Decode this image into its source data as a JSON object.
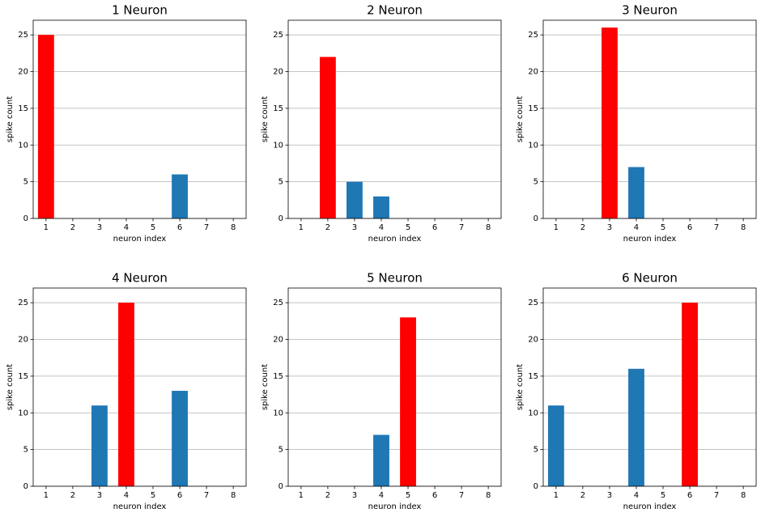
{
  "chart_data": [
    {
      "type": "bar",
      "title": "1 Neuron",
      "xlabel": "neuron index",
      "ylabel": "spike count",
      "x": [
        1,
        2,
        3,
        4,
        5,
        6,
        7,
        8
      ],
      "values": [
        25,
        0,
        0,
        0,
        0,
        6,
        0,
        0
      ],
      "colors": [
        "#ff0000",
        "#1f77b4",
        "#1f77b4",
        "#1f77b4",
        "#1f77b4",
        "#1f77b4",
        "#1f77b4",
        "#1f77b4"
      ],
      "xlim": [
        0.52,
        8.48
      ],
      "ylim": [
        0,
        27
      ],
      "xticks": [
        1,
        2,
        3,
        4,
        5,
        6,
        7,
        8
      ],
      "yticks": [
        0,
        5,
        10,
        15,
        20,
        25
      ],
      "grid": "y"
    },
    {
      "type": "bar",
      "title": "2 Neuron",
      "xlabel": "neuron index",
      "ylabel": "spike count",
      "x": [
        1,
        2,
        3,
        4,
        5,
        6,
        7,
        8
      ],
      "values": [
        0,
        22,
        5,
        3,
        0,
        0,
        0,
        0
      ],
      "colors": [
        "#1f77b4",
        "#ff0000",
        "#1f77b4",
        "#1f77b4",
        "#1f77b4",
        "#1f77b4",
        "#1f77b4",
        "#1f77b4"
      ],
      "xlim": [
        0.52,
        8.48
      ],
      "ylim": [
        0,
        27
      ],
      "xticks": [
        1,
        2,
        3,
        4,
        5,
        6,
        7,
        8
      ],
      "yticks": [
        0,
        5,
        10,
        15,
        20,
        25
      ],
      "grid": "y"
    },
    {
      "type": "bar",
      "title": "3 Neuron",
      "xlabel": "neuron index",
      "ylabel": "spike count",
      "x": [
        1,
        2,
        3,
        4,
        5,
        6,
        7,
        8
      ],
      "values": [
        0,
        0,
        26,
        7,
        0,
        0,
        0,
        0
      ],
      "colors": [
        "#1f77b4",
        "#1f77b4",
        "#ff0000",
        "#1f77b4",
        "#1f77b4",
        "#1f77b4",
        "#1f77b4",
        "#1f77b4"
      ],
      "xlim": [
        0.52,
        8.48
      ],
      "ylim": [
        0,
        27
      ],
      "xticks": [
        1,
        2,
        3,
        4,
        5,
        6,
        7,
        8
      ],
      "yticks": [
        0,
        5,
        10,
        15,
        20,
        25
      ],
      "grid": "y"
    },
    {
      "type": "bar",
      "title": "4 Neuron",
      "xlabel": "neuron index",
      "ylabel": "spike count",
      "x": [
        1,
        2,
        3,
        4,
        5,
        6,
        7,
        8
      ],
      "values": [
        0,
        0,
        11,
        25,
        0,
        13,
        0,
        0
      ],
      "colors": [
        "#1f77b4",
        "#1f77b4",
        "#1f77b4",
        "#ff0000",
        "#1f77b4",
        "#1f77b4",
        "#1f77b4",
        "#1f77b4"
      ],
      "xlim": [
        0.52,
        8.48
      ],
      "ylim": [
        0,
        27
      ],
      "xticks": [
        1,
        2,
        3,
        4,
        5,
        6,
        7,
        8
      ],
      "yticks": [
        0,
        5,
        10,
        15,
        20,
        25
      ],
      "grid": "y"
    },
    {
      "type": "bar",
      "title": "5 Neuron",
      "xlabel": "neuron index",
      "ylabel": "spike count",
      "x": [
        1,
        2,
        3,
        4,
        5,
        6,
        7,
        8
      ],
      "values": [
        0,
        0,
        0,
        7,
        23,
        0,
        0,
        0
      ],
      "colors": [
        "#1f77b4",
        "#1f77b4",
        "#1f77b4",
        "#1f77b4",
        "#ff0000",
        "#1f77b4",
        "#1f77b4",
        "#1f77b4"
      ],
      "xlim": [
        0.52,
        8.48
      ],
      "ylim": [
        0,
        27
      ],
      "xticks": [
        1,
        2,
        3,
        4,
        5,
        6,
        7,
        8
      ],
      "yticks": [
        0,
        5,
        10,
        15,
        20,
        25
      ],
      "grid": "y"
    },
    {
      "type": "bar",
      "title": "6 Neuron",
      "xlabel": "neuron index",
      "ylabel": "spike count",
      "x": [
        1,
        2,
        3,
        4,
        5,
        6,
        7,
        8
      ],
      "values": [
        11,
        0,
        0,
        16,
        0,
        25,
        0,
        0
      ],
      "colors": [
        "#1f77b4",
        "#1f77b4",
        "#1f77b4",
        "#1f77b4",
        "#1f77b4",
        "#ff0000",
        "#1f77b4",
        "#1f77b4"
      ],
      "xlim": [
        0.52,
        8.48
      ],
      "ylim": [
        0,
        27
      ],
      "xticks": [
        1,
        2,
        3,
        4,
        5,
        6,
        7,
        8
      ],
      "yticks": [
        0,
        5,
        10,
        15,
        20,
        25
      ],
      "grid": "y"
    }
  ]
}
